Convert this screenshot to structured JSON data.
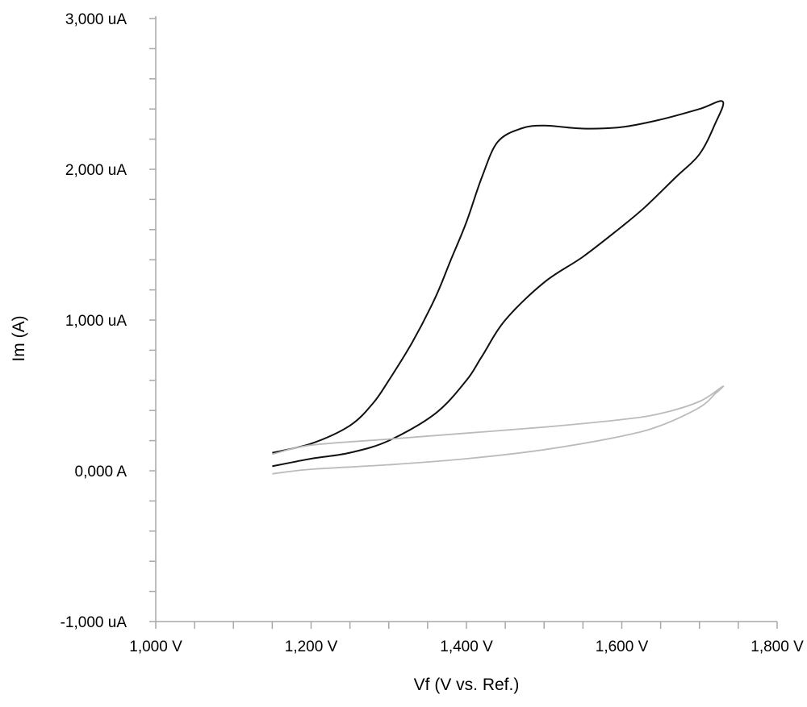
{
  "chart_data": {
    "type": "line",
    "title": "",
    "xlabel": "Vf (V vs. Ref.)",
    "ylabel": "Im (A)",
    "xlim": [
      1.0,
      1.8
    ],
    "ylim": [
      -1000,
      3000
    ],
    "x_unit": "V",
    "y_unit": "uA",
    "x_ticks": [
      {
        "value": 1.0,
        "label": "1,000 V"
      },
      {
        "value": 1.2,
        "label": "1,200 V"
      },
      {
        "value": 1.4,
        "label": "1,400 V"
      },
      {
        "value": 1.6,
        "label": "1,600 V"
      },
      {
        "value": 1.8,
        "label": "1,800 V"
      }
    ],
    "y_ticks": [
      {
        "value": -1000,
        "label": "-1,000 uA"
      },
      {
        "value": 0,
        "label": "0,000 A"
      },
      {
        "value": 1000,
        "label": "1,000 uA"
      },
      {
        "value": 2000,
        "label": "2,000 uA"
      },
      {
        "value": 3000,
        "label": "3,000 uA"
      }
    ],
    "x_minor_step": 0.05,
    "y_minor_step": 200,
    "grid": false,
    "legend": "none",
    "series": [
      {
        "color": "#111111",
        "x": [
          1.15,
          1.2,
          1.25,
          1.28,
          1.3,
          1.33,
          1.36,
          1.38,
          1.4,
          1.42,
          1.44,
          1.47,
          1.5,
          1.55,
          1.6,
          1.65,
          1.7,
          1.73,
          1.72,
          1.7,
          1.67,
          1.63,
          1.6,
          1.55,
          1.5,
          1.45,
          1.42,
          1.4,
          1.36,
          1.3,
          1.25,
          1.2,
          1.15
        ],
        "y": [
          120,
          180,
          300,
          450,
          600,
          850,
          1150,
          1400,
          1650,
          1950,
          2180,
          2270,
          2290,
          2270,
          2280,
          2330,
          2400,
          2450,
          2300,
          2100,
          1950,
          1750,
          1620,
          1420,
          1250,
          1000,
          760,
          600,
          380,
          200,
          120,
          80,
          30
        ]
      },
      {
        "color": "#bbbbbb",
        "x": [
          1.15,
          1.2,
          1.3,
          1.4,
          1.5,
          1.6,
          1.65,
          1.7,
          1.73,
          1.72,
          1.7,
          1.65,
          1.6,
          1.5,
          1.4,
          1.3,
          1.2,
          1.15
        ],
        "y": [
          110,
          170,
          210,
          250,
          290,
          340,
          380,
          460,
          560,
          510,
          420,
          300,
          230,
          140,
          80,
          40,
          10,
          -20
        ]
      }
    ]
  }
}
